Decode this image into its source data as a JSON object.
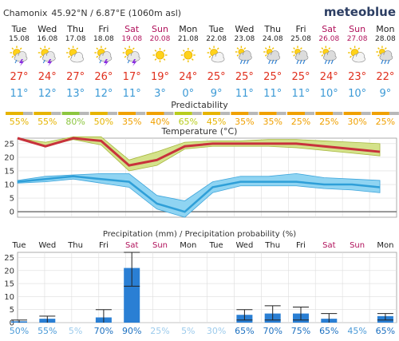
{
  "header": {
    "location": "Chamonix",
    "coords": "45.92°N / 6.87°E (1060m asl)",
    "brand": "meteoblue"
  },
  "days": [
    {
      "name": "Tue",
      "date": "15.08",
      "weekend": false,
      "icon": "partly-cloudy-thunder-icon",
      "max": "27°",
      "min": "11°",
      "pred": "55%",
      "pred_color": "#e6b400",
      "prec_prob": "50%",
      "prec": 0.5
    },
    {
      "name": "Wed",
      "date": "16.08",
      "weekend": false,
      "icon": "partly-cloudy-thunder-icon",
      "max": "24°",
      "min": "12°",
      "pred": "55%",
      "pred_color": "#e6b400",
      "prec_prob": "55%",
      "prec": 1.5
    },
    {
      "name": "Thu",
      "date": "17.08",
      "weekend": false,
      "icon": "sun-cloud-icon",
      "max": "27°",
      "min": "13°",
      "pred": "80%",
      "pred_color": "#8cc63f",
      "prec_prob": "5%",
      "prec": 0
    },
    {
      "name": "Fri",
      "date": "18.08",
      "weekend": false,
      "icon": "partly-cloudy-thunder-icon",
      "max": "26°",
      "min": "12°",
      "pred": "50%",
      "pred_color": "#e6b400",
      "prec_prob": "70%",
      "prec": 2
    },
    {
      "name": "Sat",
      "date": "19.08",
      "weekend": true,
      "icon": "partly-cloudy-thunder-icon",
      "max": "17°",
      "min": "11°",
      "pred": "35%",
      "pred_color": "#f0a000",
      "prec_prob": "90%",
      "prec": 21
    },
    {
      "name": "Sun",
      "date": "20.08",
      "weekend": true,
      "icon": "sun-icon",
      "max": "19°",
      "min": "3°",
      "pred": "40%",
      "pred_color": "#f0a000",
      "prec_prob": "25%",
      "prec": 0
    },
    {
      "name": "Mon",
      "date": "21.08",
      "weekend": false,
      "icon": "sun-icon",
      "max": "24°",
      "min": "0°",
      "pred": "65%",
      "pred_color": "#b8cc1e",
      "prec_prob": "5%",
      "prec": 0
    },
    {
      "name": "Tue",
      "date": "22.08",
      "weekend": false,
      "icon": "sun-cloud-icon",
      "max": "25°",
      "min": "9°",
      "pred": "45%",
      "pred_color": "#e6b400",
      "prec_prob": "30%",
      "prec": 0
    },
    {
      "name": "Wed",
      "date": "23.08",
      "weekend": false,
      "icon": "cloud-rain-icon",
      "max": "25°",
      "min": "11°",
      "pred": "35%",
      "pred_color": "#f0a000",
      "prec_prob": "65%",
      "prec": 3
    },
    {
      "name": "Thu",
      "date": "24.08",
      "weekend": false,
      "icon": "cloud-rain-icon",
      "max": "25°",
      "min": "11°",
      "pred": "35%",
      "pred_color": "#f0a000",
      "prec_prob": "70%",
      "prec": 3.5
    },
    {
      "name": "Fri",
      "date": "25.08",
      "weekend": false,
      "icon": "cloud-rain-icon",
      "max": "25°",
      "min": "11°",
      "pred": "25%",
      "pred_color": "#f0a000",
      "prec_prob": "75%",
      "prec": 3.5
    },
    {
      "name": "Sat",
      "date": "26.08",
      "weekend": true,
      "icon": "cloud-rain-icon",
      "max": "24°",
      "min": "10°",
      "pred": "25%",
      "pred_color": "#f0a000",
      "prec_prob": "65%",
      "prec": 1.5
    },
    {
      "name": "Sun",
      "date": "27.08",
      "weekend": true,
      "icon": "sun-cloud-icon",
      "max": "23°",
      "min": "10°",
      "pred": "30%",
      "pred_color": "#f0a000",
      "prec_prob": "45%",
      "prec": 0
    },
    {
      "name": "Mon",
      "date": "28.08",
      "weekend": false,
      "icon": "cloud-rain-icon",
      "max": "22°",
      "min": "9°",
      "pred": "25%",
      "pred_color": "#f0a000",
      "prec_prob": "65%",
      "prec": 2.5
    }
  ],
  "labels": {
    "predictability": "Predictability",
    "temperature": "Temperature (°C)",
    "precipitation": "Precipitation (mm) / Precipitation probability (%)"
  },
  "colors": {
    "max_temp": "#e0301e",
    "min_temp": "#3c9ad6",
    "weekend": "#b0105a",
    "max_line": "#c8323c",
    "max_band": "#d4e28a",
    "min_line": "#2f9fd8",
    "min_band": "#8fd4f2",
    "bar": "#2a7fd4",
    "grey": "#b8b8b8"
  },
  "chart_data": [
    {
      "type": "line",
      "title": "Temperature (°C)",
      "categories": [
        "Tue",
        "Wed",
        "Thu",
        "Fri",
        "Sat",
        "Sun",
        "Mon",
        "Tue",
        "Wed",
        "Thu",
        "Fri",
        "Sat",
        "Sun",
        "Mon"
      ],
      "yticks": [
        0,
        5,
        10,
        15,
        20,
        25
      ],
      "ylim": [
        -2,
        27
      ],
      "series": [
        {
          "values": [
            27,
            24,
            27,
            26,
            17,
            19,
            24,
            25,
            25,
            25,
            25,
            24,
            23,
            22
          ],
          "band_low": [
            27,
            24,
            26.5,
            24.5,
            15,
            17,
            23,
            24,
            24,
            24,
            23.5,
            22.5,
            21.5,
            20.5
          ],
          "band_high": [
            27,
            25.5,
            27.5,
            27.5,
            19,
            22,
            25.5,
            26,
            26,
            26.5,
            26.5,
            26,
            25.5,
            25
          ]
        },
        {
          "values": [
            11,
            12,
            13,
            12,
            11,
            3,
            0,
            9,
            11,
            11,
            11,
            10,
            10,
            9
          ],
          "band_low": [
            10.5,
            11,
            12,
            10.5,
            9,
            1,
            -2,
            7,
            9.5,
            9.5,
            9.5,
            8.5,
            8,
            7
          ],
          "band_high": [
            11.5,
            13,
            13.5,
            14,
            14,
            6,
            4,
            11,
            13,
            13,
            14,
            12.5,
            12,
            11.5
          ]
        }
      ]
    },
    {
      "type": "bar",
      "title": "Precipitation (mm) / Precipitation probability (%)",
      "categories": [
        "Tue",
        "Wed",
        "Thu",
        "Fri",
        "Sat",
        "Sun",
        "Mon",
        "Tue",
        "Wed",
        "Thu",
        "Fri",
        "Sat",
        "Sun",
        "Mon"
      ],
      "values": [
        0.5,
        1.5,
        0,
        2,
        21,
        0,
        0,
        0,
        3,
        3.5,
        3.5,
        1.5,
        0,
        2.5
      ],
      "err_high": [
        1,
        2.5,
        0,
        5,
        27,
        0,
        0,
        0,
        5,
        6.5,
        6,
        3.5,
        0,
        3.5
      ],
      "err_low": [
        0,
        0,
        0,
        0,
        14,
        0,
        0,
        0,
        1,
        1,
        1,
        0,
        0,
        1
      ],
      "probability": [
        "50%",
        "55%",
        "5%",
        "70%",
        "90%",
        "25%",
        "5%",
        "30%",
        "65%",
        "70%",
        "75%",
        "65%",
        "45%",
        "65%"
      ],
      "yticks": [
        0,
        5,
        10,
        15,
        20,
        25
      ],
      "ylim": [
        0,
        27
      ]
    }
  ]
}
